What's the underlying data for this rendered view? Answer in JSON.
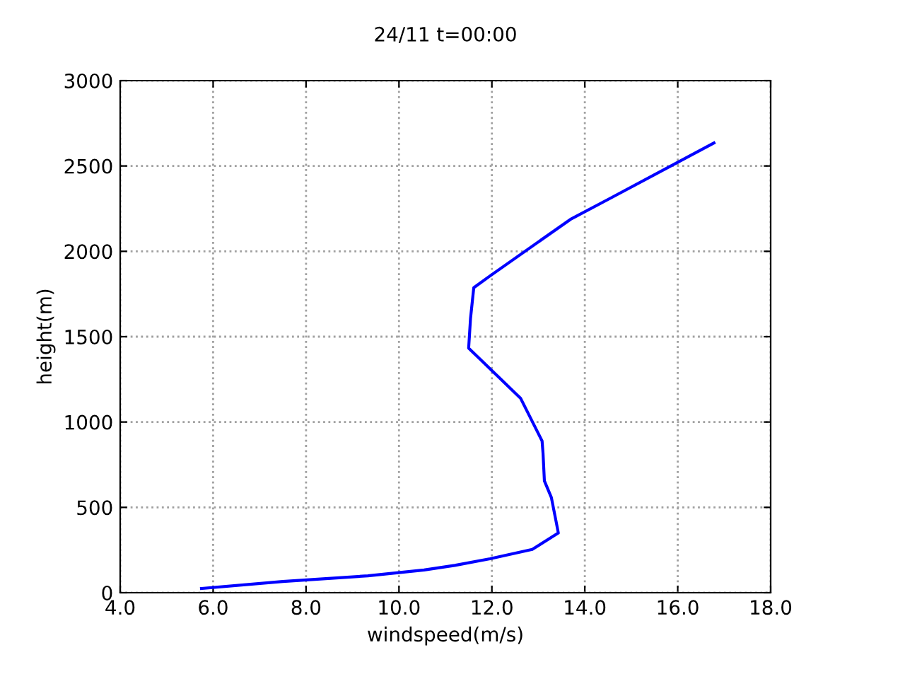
{
  "chart_data": {
    "type": "line",
    "title": "24/11 t=00:00",
    "xlabel": "windspeed(m/s)",
    "ylabel": "height(m)",
    "series": [
      {
        "color": "#0000ff",
        "x": [
          5.75,
          7.5,
          9.33,
          10.54,
          11.2,
          11.96,
          12.87,
          13.43,
          13.38,
          13.28,
          13.13,
          13.1,
          13.08,
          12.62,
          11.5,
          11.54,
          11.61,
          11.96,
          13.69,
          14.55,
          16.78
        ],
        "values": [
          25,
          66,
          99,
          133,
          160,
          199,
          254,
          350,
          420,
          558,
          655,
          820,
          889,
          1138,
          1433,
          1607,
          1787,
          1856,
          2187,
          2311,
          2635
        ]
      }
    ],
    "xlim": [
      4,
      18
    ],
    "xticks": [
      {
        "value": 4,
        "label": "4.0"
      },
      {
        "value": 6,
        "label": "6.0"
      },
      {
        "value": 8,
        "label": "8.0"
      },
      {
        "value": 10,
        "label": "10.0"
      },
      {
        "value": 12,
        "label": "12.0"
      },
      {
        "value": 14,
        "label": "14.0"
      },
      {
        "value": 16,
        "label": "16.0"
      },
      {
        "value": 18,
        "label": "18.0"
      }
    ],
    "ylim": [
      0,
      3000
    ],
    "yticks": [
      0,
      500,
      1000,
      1500,
      2000,
      2500,
      3000
    ],
    "grid": true,
    "line_style": "solid"
  }
}
